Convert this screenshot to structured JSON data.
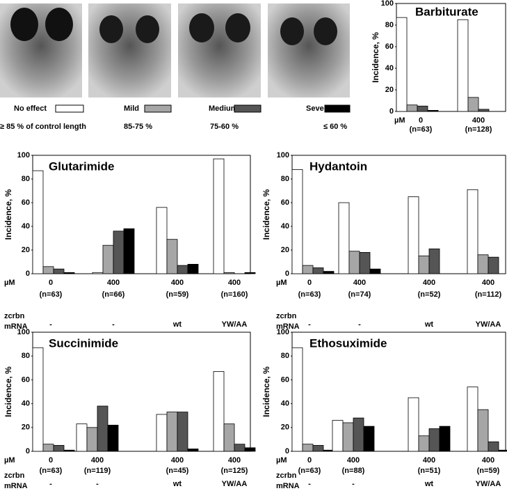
{
  "legend": [
    {
      "name": "No effect",
      "color": "#ffffff",
      "range": "≥ 85 % of control length"
    },
    {
      "name": "Mild",
      "color": "#a6a6a6",
      "range": "85-75 %"
    },
    {
      "name": "Medium",
      "color": "#555555",
      "range": "75-60 %"
    },
    {
      "name": "Severe",
      "color": "#000000",
      "range": "≤ 60 %"
    }
  ],
  "chart_data": [
    {
      "type": "bar",
      "title": "Barbiturate",
      "ylabel": "Incidence, %",
      "x_unit": "µM",
      "categories": [
        "0",
        "400"
      ],
      "n_labels": [
        "(n=63)",
        "(n=128)"
      ],
      "ylim": [
        0,
        100
      ],
      "yticks": [
        0,
        20,
        40,
        60,
        80,
        100
      ],
      "series": [
        {
          "values": [
            87,
            85
          ]
        },
        {
          "values": [
            6,
            13
          ]
        },
        {
          "values": [
            5,
            2
          ]
        },
        {
          "values": [
            1,
            0
          ]
        }
      ]
    },
    {
      "type": "bar",
      "title": "Glutarimide",
      "ylabel": "Incidence, %",
      "x_unit": "µM",
      "categories": [
        "0",
        "400",
        "400",
        "400"
      ],
      "n_labels": [
        "(n=63)",
        "(n=66)",
        "(n=59)",
        "(n=160)"
      ],
      "row_labels": [
        "zcrbn",
        "mRNA"
      ],
      "mrna": [
        "-",
        "-",
        "wt",
        "YW/AA"
      ],
      "ylim": [
        0,
        100
      ],
      "yticks": [
        0,
        20,
        40,
        60,
        80,
        100
      ],
      "series": [
        {
          "values": [
            87,
            1,
            56,
            97
          ]
        },
        {
          "values": [
            6,
            24,
            29,
            1
          ]
        },
        {
          "values": [
            4,
            36,
            7,
            0
          ]
        },
        {
          "values": [
            1,
            38,
            8,
            1
          ]
        }
      ]
    },
    {
      "type": "bar",
      "title": "Hydantoin",
      "ylabel": "Incidence, %",
      "x_unit": "µM",
      "categories": [
        "0",
        "400",
        "400",
        "400"
      ],
      "n_labels": [
        "(n=63)",
        "(n=74)",
        "(n=52)",
        "(n=112)"
      ],
      "row_labels": [
        "zcrbn",
        "mRNA"
      ],
      "mrna": [
        "-",
        "-",
        "wt",
        "YW/AA"
      ],
      "ylim": [
        0,
        100
      ],
      "yticks": [
        0,
        20,
        40,
        60,
        80,
        100
      ],
      "series": [
        {
          "values": [
            88,
            60,
            65,
            71
          ]
        },
        {
          "values": [
            7,
            19,
            15,
            16
          ]
        },
        {
          "values": [
            5,
            18,
            21,
            14
          ]
        },
        {
          "values": [
            2,
            4,
            0,
            0
          ]
        }
      ]
    },
    {
      "type": "bar",
      "title": "Succinimide",
      "ylabel": "Incidence, %",
      "x_unit": "µM",
      "categories": [
        "0",
        "400",
        "400",
        "400"
      ],
      "n_labels": [
        "(n=63)",
        "(n=119)",
        "(n=45)",
        "(n=125)"
      ],
      "row_labels": [
        "zcrbn",
        "mRNA"
      ],
      "mrna": [
        "-",
        "-",
        "wt",
        "YW/AA"
      ],
      "ylim": [
        0,
        100
      ],
      "yticks": [
        0,
        20,
        40,
        60,
        80,
        100
      ],
      "series": [
        {
          "values": [
            87,
            23,
            31,
            67
          ]
        },
        {
          "values": [
            6,
            20,
            33,
            23
          ]
        },
        {
          "values": [
            5,
            38,
            33,
            6
          ]
        },
        {
          "values": [
            1,
            22,
            2,
            3
          ]
        }
      ]
    },
    {
      "type": "bar",
      "title": "Ethosuximide",
      "ylabel": "Incidence, %",
      "x_unit": "µM",
      "categories": [
        "0",
        "400",
        "400",
        "400"
      ],
      "n_labels": [
        "(n=63)",
        "(n=88)",
        "(n=51)",
        "(n=59)"
      ],
      "row_labels": [
        "zcrbn",
        "mRNA"
      ],
      "mrna": [
        "-",
        "-",
        "wt",
        "YW/AA"
      ],
      "ylim": [
        0,
        100
      ],
      "yticks": [
        0,
        20,
        40,
        60,
        80,
        100
      ],
      "series": [
        {
          "values": [
            87,
            26,
            45,
            54
          ]
        },
        {
          "values": [
            6,
            24,
            13,
            35
          ]
        },
        {
          "values": [
            5,
            28,
            19,
            8
          ]
        },
        {
          "values": [
            1,
            21,
            21,
            1
          ]
        }
      ]
    }
  ]
}
